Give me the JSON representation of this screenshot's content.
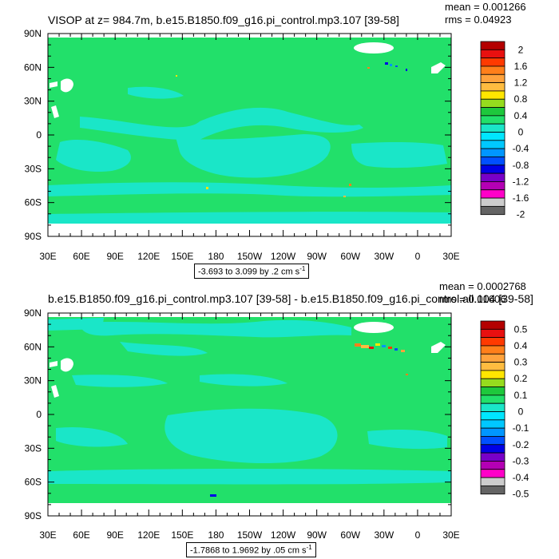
{
  "chart_data": [
    {
      "type": "heatmap",
      "title": "VISOP at z= 984.7m, b.e15.B1850.f09_g16.pi_control.mp3.107 [39-58]",
      "stats": {
        "mean": "mean = 0.001266",
        "rms": "rms = 0.04923"
      },
      "x_ticks": [
        "30E",
        "60E",
        "90E",
        "120E",
        "150E",
        "180",
        "150W",
        "120W",
        "90W",
        "60W",
        "30W",
        "0",
        "30E"
      ],
      "y_ticks": [
        "90N",
        "60N",
        "30N",
        "0",
        "30S",
        "60S",
        "90S"
      ],
      "xlim": [
        30,
        390
      ],
      "ylim": [
        -90,
        90
      ],
      "contour_info": "-3.693 to 3.099 by .2 cm s",
      "contour_unit_exp": "-1",
      "colorbar_labels": [
        "2",
        "1.6",
        "1.2",
        "0.8",
        "0.4",
        "0",
        "-0.4",
        "-0.8",
        "-1.2",
        "-1.6",
        "-2"
      ]
    },
    {
      "type": "heatmap",
      "title": "b.e15.B1850.f09_g16.pi_control.mp3.107 [39-58] - b.e15.B1850.f09_g16.pi_control.all.104 [39-58]",
      "stats": {
        "mean": "mean = 0.0002768",
        "rms": "rms = 0.01606"
      },
      "x_ticks": [
        "30E",
        "60E",
        "90E",
        "120E",
        "150E",
        "180",
        "150W",
        "120W",
        "90W",
        "60W",
        "30W",
        "0",
        "30E"
      ],
      "y_ticks": [
        "90N",
        "60N",
        "30N",
        "0",
        "30S",
        "60S",
        "90S"
      ],
      "xlim": [
        30,
        390
      ],
      "ylim": [
        -90,
        90
      ],
      "contour_info": "-1.7868 to 1.9692 by .05 cm s",
      "contour_unit_exp": "-1",
      "colorbar_labels": [
        "0.5",
        "0.4",
        "0.3",
        "0.2",
        "0.1",
        "0",
        "-0.1",
        "-0.2",
        "-0.3",
        "-0.4",
        "-0.5"
      ]
    }
  ],
  "colors": {
    "ocean_main": "#22e06a",
    "ocean_alt": "#1ae6c8",
    "land": "#ffffff",
    "colorbar": [
      "#b40000",
      "#e81010",
      "#ff3a00",
      "#ff7f1a",
      "#ffa23c",
      "#ffbc40",
      "#ffe600",
      "#96dc1e",
      "#1ec83c",
      "#22e06a",
      "#1ae6c8",
      "#00e6ff",
      "#00c8ff",
      "#0096ff",
      "#0050ff",
      "#0000e6",
      "#7800c8",
      "#b400b4",
      "#ff00c8",
      "#cccccc",
      "#646464"
    ]
  }
}
